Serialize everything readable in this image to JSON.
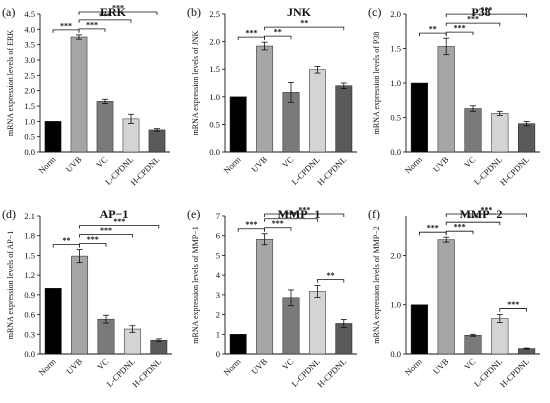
{
  "chart_data": [
    {
      "type": "bar",
      "panel_label": "(a)",
      "title": "ERK",
      "ylabel": "mRNA expression levels of ERK",
      "ylim": [
        0,
        4.5
      ],
      "yticks": [
        "0.0",
        "0.5",
        "1.0",
        "1.5",
        "2.0",
        "2.5",
        "3.0",
        "3.5",
        "4.0",
        "4.5"
      ],
      "categories": [
        "Norm",
        "UVB",
        "VC",
        "L-CPDNL",
        "H-CPDNL"
      ],
      "values": [
        1.0,
        3.75,
        1.65,
        1.08,
        0.72
      ],
      "errors": [
        0,
        0.07,
        0.07,
        0.15,
        0.04
      ],
      "colors": [
        "#000000",
        "#a6a6a6",
        "#7a7a7a",
        "#d4d4d4",
        "#5a5a5a"
      ],
      "significance": [
        {
          "from": 0,
          "to": 1,
          "label": "***"
        },
        {
          "from": 1,
          "to": 2,
          "label": "***"
        },
        {
          "from": 1,
          "to": 3,
          "label": "***"
        },
        {
          "from": 1,
          "to": 4,
          "label": "***"
        }
      ]
    },
    {
      "type": "bar",
      "panel_label": "(b)",
      "title": "JNK",
      "ylabel": "mRNA expression levels of JNK",
      "ylim": [
        0,
        2.5
      ],
      "yticks": [
        "0.0",
        "0.5",
        "1.0",
        "1.5",
        "2.0",
        "2.5"
      ],
      "categories": [
        "Norm",
        "UVB",
        "VC",
        "L-CPDNL",
        "H-CPDNL"
      ],
      "values": [
        1.0,
        1.92,
        1.08,
        1.49,
        1.2
      ],
      "errors": [
        0,
        0.07,
        0.18,
        0.06,
        0.05
      ],
      "colors": [
        "#000000",
        "#a6a6a6",
        "#7a7a7a",
        "#d4d4d4",
        "#5a5a5a"
      ],
      "significance": [
        {
          "from": 0,
          "to": 1,
          "label": "***"
        },
        {
          "from": 1,
          "to": 2,
          "label": "**"
        },
        {
          "from": 1,
          "to": 4,
          "label": "**"
        }
      ]
    },
    {
      "type": "bar",
      "panel_label": "(c)",
      "title": "P38",
      "ylabel": "mRNA expression levels of P38",
      "ylim": [
        0,
        2.0
      ],
      "yticks": [
        "0.0",
        "0.5",
        "1.0",
        "1.5",
        "2.0"
      ],
      "categories": [
        "Norm",
        "UVB",
        "VC",
        "L-CPDNL",
        "H-CPDNL"
      ],
      "values": [
        1.0,
        1.53,
        0.63,
        0.56,
        0.41
      ],
      "errors": [
        0,
        0.12,
        0.04,
        0.03,
        0.03
      ],
      "colors": [
        "#000000",
        "#a6a6a6",
        "#7a7a7a",
        "#d4d4d4",
        "#5a5a5a"
      ],
      "significance": [
        {
          "from": 0,
          "to": 1,
          "label": "**"
        },
        {
          "from": 1,
          "to": 2,
          "label": "***"
        },
        {
          "from": 1,
          "to": 3,
          "label": "***"
        },
        {
          "from": 1,
          "to": 4,
          "label": "***"
        }
      ]
    },
    {
      "type": "bar",
      "panel_label": "(d)",
      "title": "AP−1",
      "ylabel": "mRNA expression levels of AP−1",
      "ylim": [
        0,
        2.1
      ],
      "yticks": [
        "0.0",
        "0.3",
        "0.6",
        "0.9",
        "1.2",
        "1.5",
        "1.8",
        "2.1"
      ],
      "categories": [
        "Norm",
        "UVB",
        "VC",
        "L-CPDNL",
        "H-CPDNL"
      ],
      "values": [
        1.0,
        1.49,
        0.53,
        0.38,
        0.21
      ],
      "errors": [
        0,
        0.1,
        0.06,
        0.05,
        0.02
      ],
      "colors": [
        "#000000",
        "#a6a6a6",
        "#7a7a7a",
        "#d4d4d4",
        "#5a5a5a"
      ],
      "significance": [
        {
          "from": 0,
          "to": 1,
          "label": "**"
        },
        {
          "from": 1,
          "to": 2,
          "label": "***"
        },
        {
          "from": 1,
          "to": 3,
          "label": "***"
        },
        {
          "from": 1,
          "to": 4,
          "label": "***"
        }
      ]
    },
    {
      "type": "bar",
      "panel_label": "(e)",
      "title": "MMP−1",
      "ylabel": "mRNA expression levels of MMP−1",
      "ylim": [
        0,
        7
      ],
      "yticks": [
        "0",
        "1",
        "2",
        "3",
        "4",
        "5",
        "6",
        "7"
      ],
      "categories": [
        "Norm",
        "UVB",
        "VC",
        "L-CPDNL",
        "H-CPDNL"
      ],
      "values": [
        1.0,
        5.82,
        2.85,
        3.17,
        1.55
      ],
      "errors": [
        0,
        0.28,
        0.4,
        0.3,
        0.2
      ],
      "colors": [
        "#000000",
        "#a6a6a6",
        "#7a7a7a",
        "#d4d4d4",
        "#5a5a5a"
      ],
      "significance": [
        {
          "from": 0,
          "to": 1,
          "label": "***"
        },
        {
          "from": 1,
          "to": 2,
          "label": "***"
        },
        {
          "from": 1,
          "to": 3,
          "label": "***"
        },
        {
          "from": 1,
          "to": 4,
          "label": "***"
        },
        {
          "from": 3,
          "to": 4,
          "label": "**"
        }
      ]
    },
    {
      "type": "bar",
      "panel_label": "(f)",
      "title": "MMP−2",
      "ylabel": "mRNA expression levels of MMP−2",
      "ylim": [
        0,
        2.8
      ],
      "yticks": [
        "0.0",
        "1.0",
        "2.0"
      ],
      "categories": [
        "Norm",
        "UVB",
        "VC",
        "L-CPDNL",
        "H-CPDNL"
      ],
      "values": [
        1.0,
        2.32,
        0.38,
        0.72,
        0.11
      ],
      "errors": [
        0,
        0.05,
        0.02,
        0.08,
        0.01
      ],
      "colors": [
        "#000000",
        "#a6a6a6",
        "#7a7a7a",
        "#d4d4d4",
        "#5a5a5a"
      ],
      "significance": [
        {
          "from": 0,
          "to": 1,
          "label": "***"
        },
        {
          "from": 1,
          "to": 2,
          "label": "***"
        },
        {
          "from": 1,
          "to": 3,
          "label": "***"
        },
        {
          "from": 1,
          "to": 4,
          "label": "***"
        },
        {
          "from": 3,
          "to": 4,
          "label": "***"
        }
      ]
    }
  ]
}
